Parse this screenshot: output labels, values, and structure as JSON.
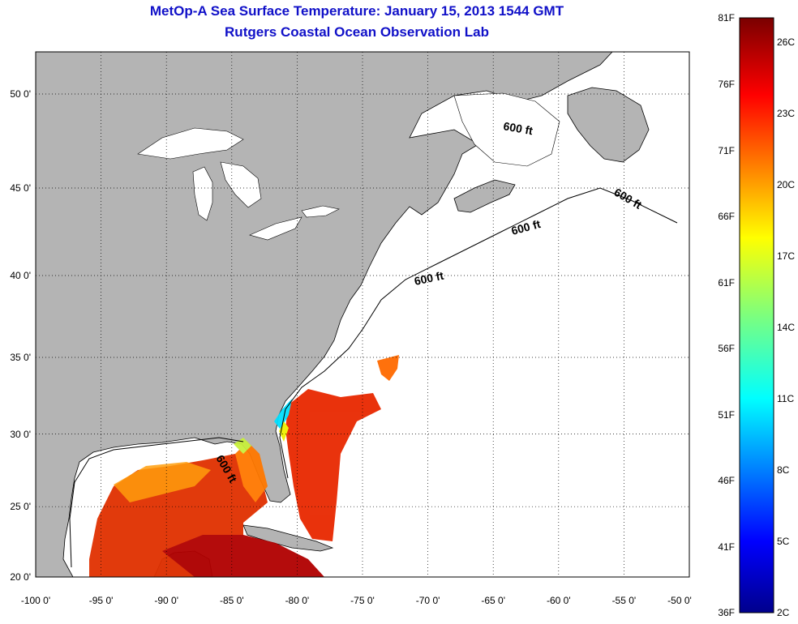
{
  "title": "MetOp-A Sea Surface Temperature:  January 15, 2013 1544 GMT",
  "subtitle": "Rutgers Coastal Ocean Observation Lab",
  "map": {
    "lon_ticks": [
      "-100 0'",
      "-95 0'",
      "-90 0'",
      "-85 0'",
      "-80 0'",
      "-75 0'",
      "-70 0'",
      "-65 0'",
      "-60 0'",
      "-55 0'",
      "-50 0'"
    ],
    "lat_ticks": [
      "20 0'",
      "25 0'",
      "30 0'",
      "35 0'",
      "40 0'",
      "45 0'",
      "50 0'"
    ],
    "lon_values": [
      -100,
      -95,
      -90,
      -85,
      -80,
      -75,
      -70,
      -65,
      -60,
      -55,
      -50
    ],
    "lat_values": [
      20,
      25,
      30,
      35,
      40,
      45,
      50
    ],
    "lon_range": [
      -100,
      -50
    ],
    "lat_range": [
      20,
      52.5
    ],
    "grid": true,
    "contour_labels": [
      "600 ft",
      "600 ft",
      "600 ft",
      "600 ft",
      "600 ft"
    ],
    "colors": {
      "land": "#b4b4b4",
      "ocean_nodata": "#ffffff",
      "title": "#1010c8"
    }
  },
  "colorbar": {
    "fahrenheit_labels": [
      "81F",
      "76F",
      "71F",
      "66F",
      "61F",
      "56F",
      "51F",
      "46F",
      "41F",
      "36F"
    ],
    "celsius_labels": [
      "26C",
      "23C",
      "20C",
      "17C",
      "14C",
      "11C",
      "8C",
      "5C",
      "2C"
    ],
    "range_f": [
      36,
      81
    ],
    "range_c": [
      2.2,
      27.2
    ],
    "colormap": "jet"
  }
}
